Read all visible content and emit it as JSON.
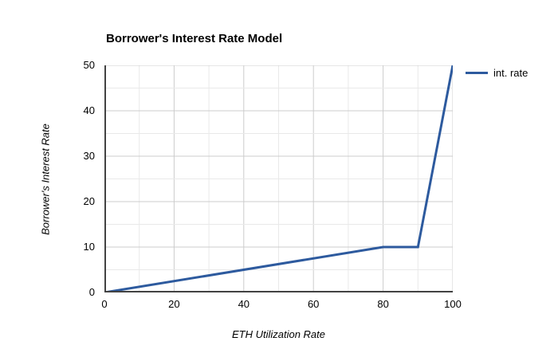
{
  "chart_data": {
    "type": "line",
    "title": "Borrower's Interest Rate Model",
    "xlabel": "ETH Utilization Rate",
    "ylabel": "Borrower's Interest Rate",
    "series": [
      {
        "name": "int. rate",
        "color": "#2d5a9e",
        "points": [
          {
            "x": 0,
            "y": 0
          },
          {
            "x": 80,
            "y": 10
          },
          {
            "x": 90,
            "y": 10
          },
          {
            "x": 100,
            "y": 50
          }
        ]
      }
    ],
    "xlim": [
      0,
      100
    ],
    "ylim": [
      0,
      50
    ],
    "x_ticks": [
      0,
      20,
      40,
      60,
      80,
      100
    ],
    "y_ticks": [
      0,
      10,
      20,
      30,
      40,
      50
    ],
    "x_minor_step": 10,
    "y_minor_step": 5,
    "grid": true,
    "legend_position": "right-top"
  },
  "colors": {
    "series_line": "#2d5a9e",
    "axis": "#424242",
    "grid_major": "#cccccc",
    "grid_minor": "#e9e9e9",
    "text": "#000000",
    "background": "#ffffff"
  }
}
